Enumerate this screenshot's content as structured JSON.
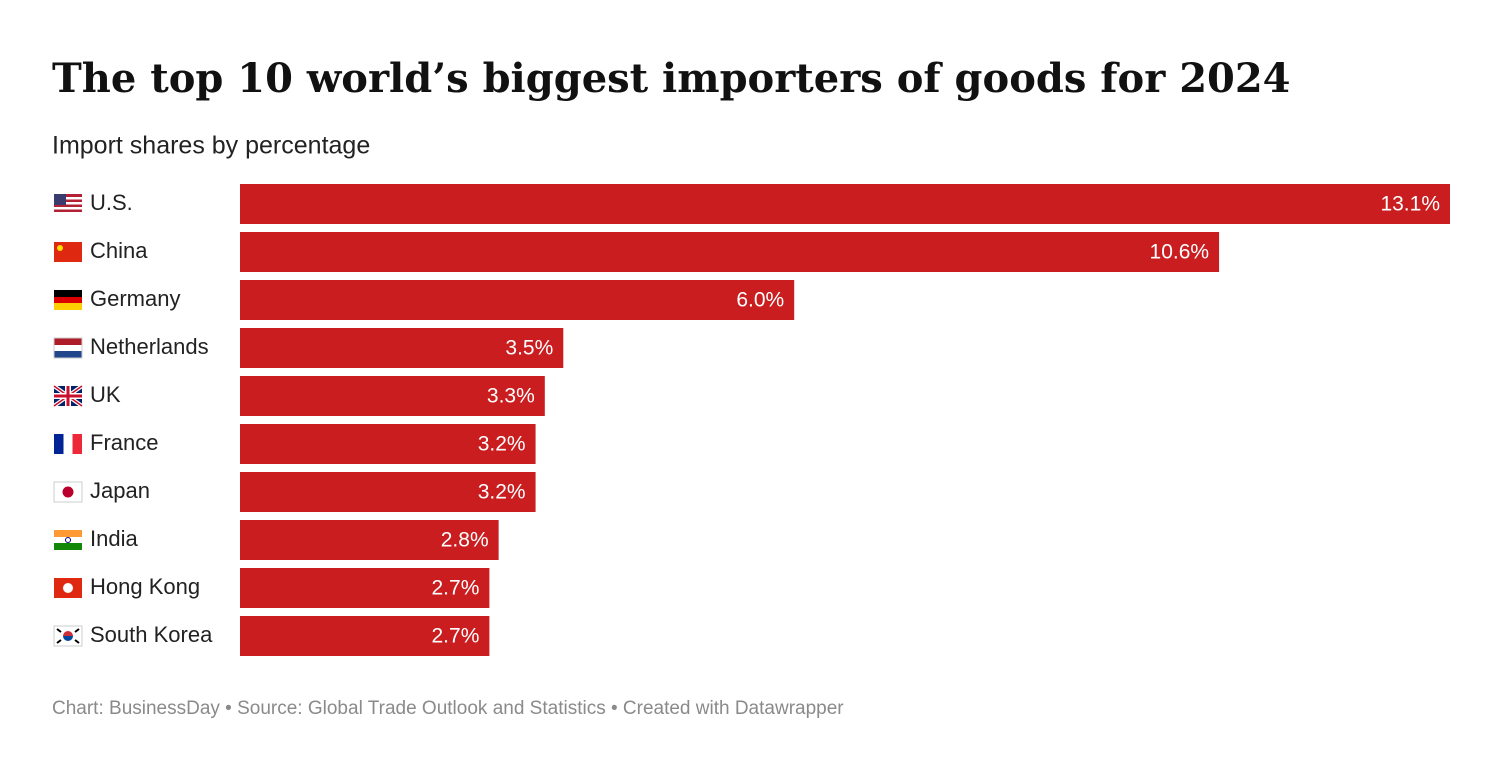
{
  "chart_data": {
    "type": "bar",
    "title": "The top 10 world’s biggest importers of goods for 2024",
    "subtitle": "Import shares by percentage",
    "categories": [
      "U.S.",
      "China",
      "Germany",
      "Netherlands",
      "UK",
      "France",
      "Japan",
      "India",
      "Hong Kong",
      "South Korea"
    ],
    "values": [
      13.1,
      10.6,
      6.0,
      3.5,
      3.3,
      3.2,
      3.2,
      2.8,
      2.7,
      2.7
    ],
    "value_labels": [
      "13.1%",
      "10.6%",
      "6.0%",
      "3.5%",
      "3.3%",
      "3.2%",
      "3.2%",
      "2.8%",
      "2.7%",
      "2.7%"
    ],
    "color": "#c91d1f",
    "footer": "Chart: BusinessDay • Source: Global Trade Outlook and Statistics • Created with Datawrapper"
  }
}
